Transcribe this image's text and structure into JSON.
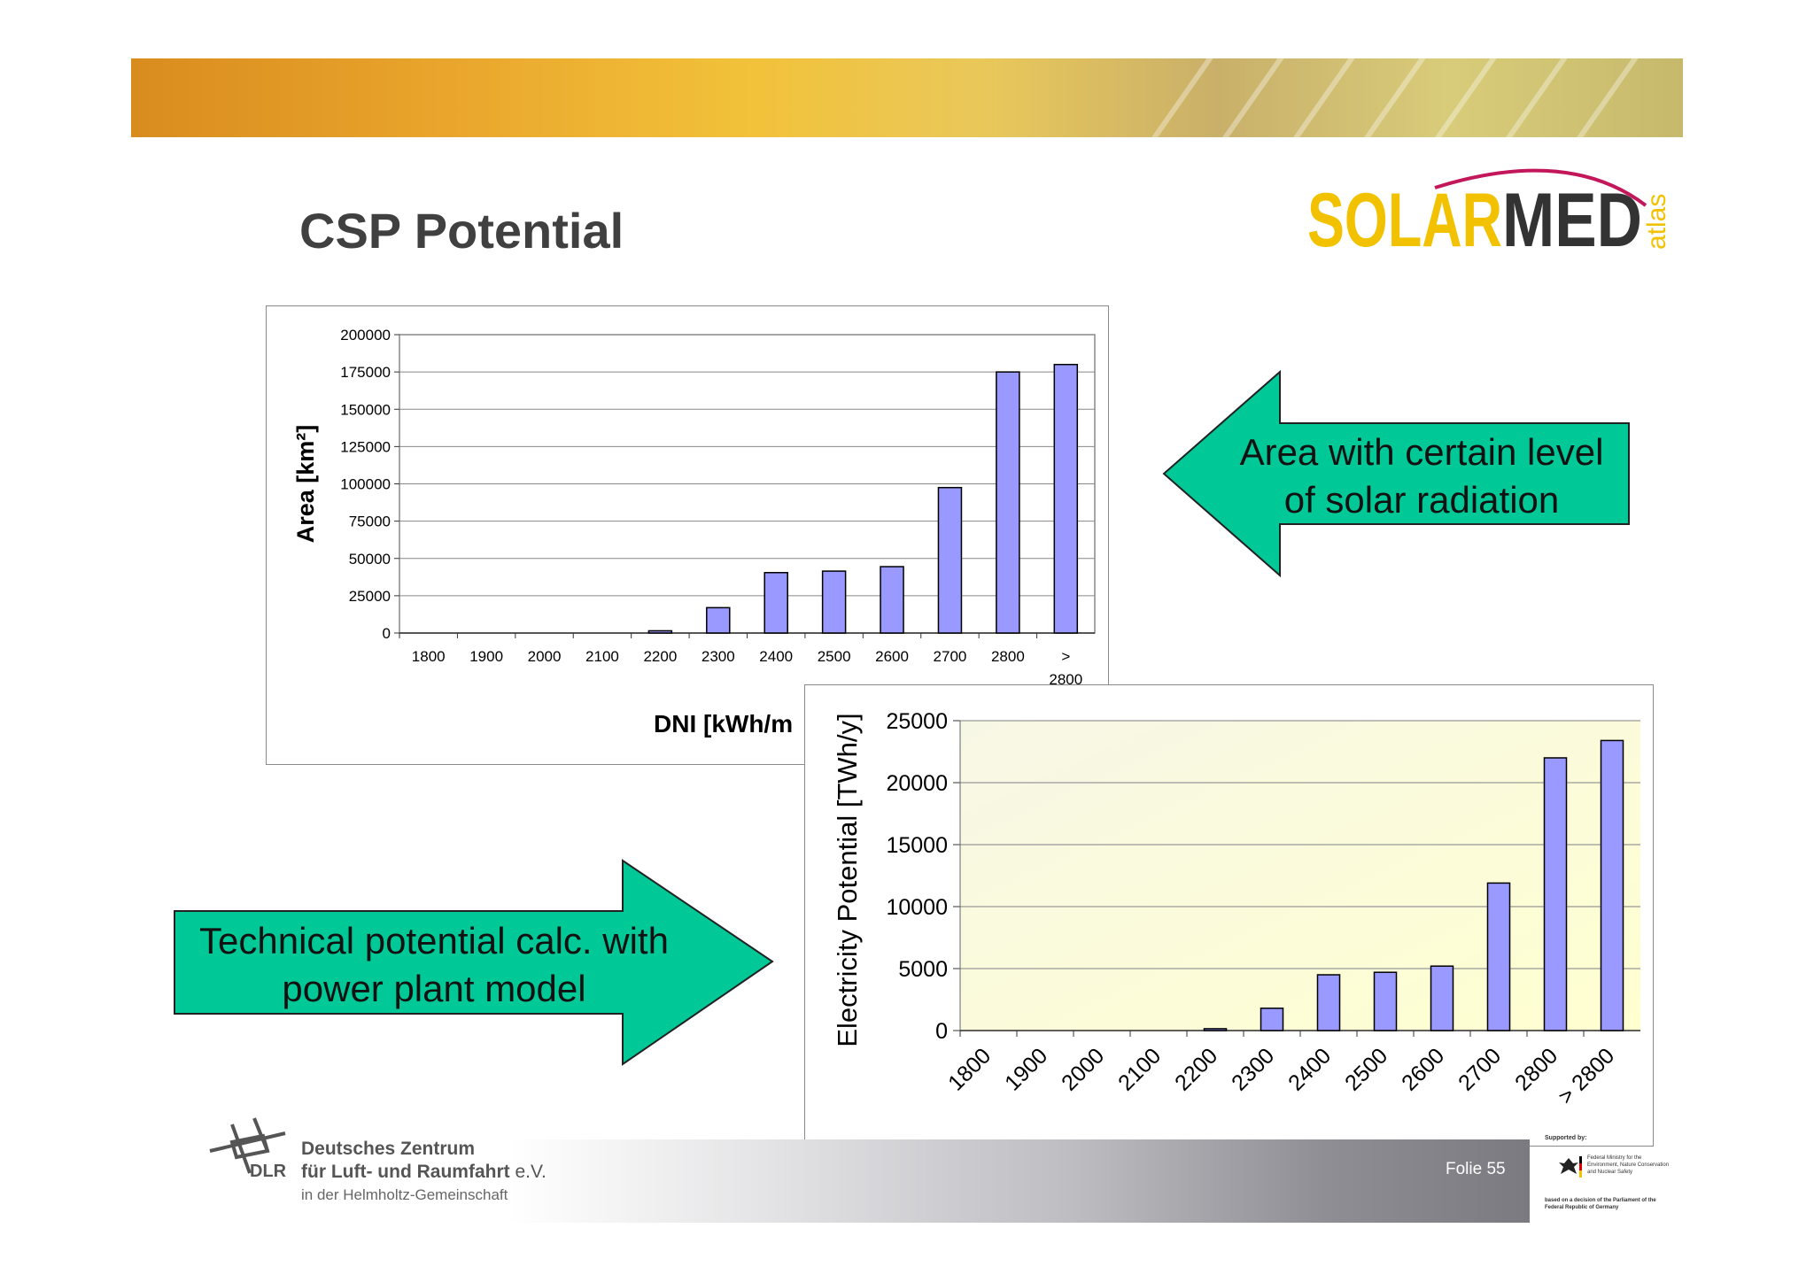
{
  "slide": {
    "title": "CSP Potential",
    "logo_text": "SOLARMED",
    "logo_sub": "atlas",
    "folie": "Folie 55"
  },
  "arrows": {
    "left_pointing": "Area with certain level of solar radiation",
    "right_pointing": "Technical potential calc. with power plant model"
  },
  "footer": {
    "org_line1": "Deutsches Zentrum",
    "org_line2": "für Luft- und Raumfahrt",
    "org_line2_suffix": "e.V.",
    "org_line3": "in der Helmholtz-Gemeinschaft",
    "abbr": "DLR",
    "support_heading": "Supported by:",
    "support_ministry": "Federal Ministry for the Environment, Nature Conservation and Nuclear Safety",
    "support_basis": "based on a decision of the Parliament of the Federal Republic of Germany"
  },
  "colors": {
    "bar_fill": "#9999ff",
    "arrow_fill": "#00c896",
    "title_color": "#404040"
  },
  "chart_data": [
    {
      "type": "bar",
      "categories": [
        "1800",
        "1900",
        "2000",
        "2100",
        "2200",
        "2300",
        "2400",
        "2500",
        "2600",
        "2700",
        "2800",
        "> 2800"
      ],
      "values": [
        0,
        0,
        0,
        0,
        1500,
        17000,
        40500,
        41500,
        44500,
        97500,
        175000,
        180000
      ],
      "ylabel": "Area [km²]",
      "xlabel": "DNI [kWh/m",
      "yticks": [
        0,
        25000,
        50000,
        75000,
        100000,
        125000,
        150000,
        175000,
        200000
      ],
      "ylim": [
        0,
        200000
      ],
      "grid": true,
      "legend": "none"
    },
    {
      "type": "bar",
      "categories": [
        "1800",
        "1900",
        "2000",
        "2100",
        "2200",
        "2300",
        "2400",
        "2500",
        "2600",
        "2700",
        "2800",
        "> 2800"
      ],
      "values": [
        0,
        0,
        0,
        0,
        150,
        1800,
        4500,
        4700,
        5200,
        11900,
        22000,
        23400
      ],
      "ylabel": "Electricity Potential [TWh/y]",
      "xlabel": "",
      "yticks": [
        0,
        5000,
        10000,
        15000,
        20000,
        25000
      ],
      "ylim": [
        0,
        25000
      ],
      "grid": true,
      "legend": "none"
    }
  ]
}
